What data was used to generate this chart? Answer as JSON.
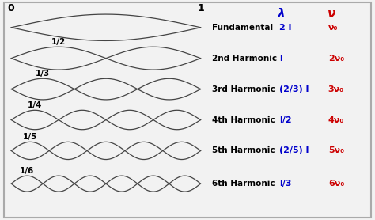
{
  "bg_color": "#f2f2f2",
  "border_color": "#aaaaaa",
  "wave_color": "#444444",
  "harmonics": [
    1,
    2,
    3,
    4,
    5,
    6
  ],
  "node_labels": [
    "",
    "1/2",
    "1/3",
    "1/4",
    "1/5",
    "1/6"
  ],
  "harmonic_names": [
    "Fundamental",
    "2nd Harmonic",
    "3rd Harmonic",
    "4th Harmonic",
    "5th Harmonic",
    "6th Harmonic"
  ],
  "lambda_labels": [
    "2 l",
    "l",
    "(2/3) l",
    "l/2",
    "(2/5) l",
    "l/3"
  ],
  "nu_labels": [
    "ν₀",
    "2ν₀",
    "3ν₀",
    "4ν₀",
    "5ν₀",
    "6ν₀"
  ],
  "lambda_color": "#0000cc",
  "nu_color": "#cc0000",
  "label_color": "#000000",
  "header_lambda": "λ",
  "header_nu": "ν",
  "zero_label": "0",
  "one_label": "1"
}
